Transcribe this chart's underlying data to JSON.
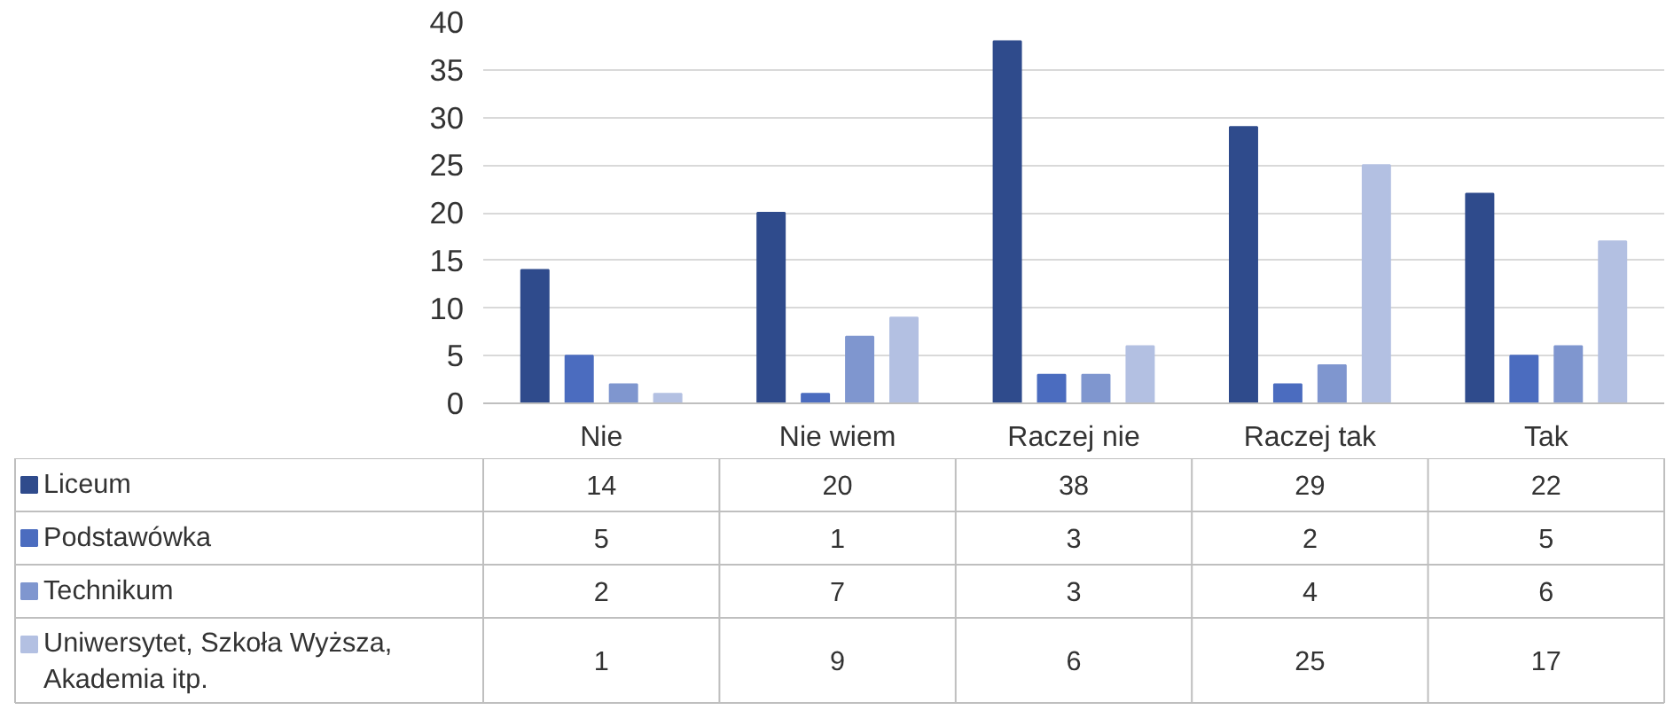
{
  "chart_data": {
    "type": "bar",
    "categories": [
      "Nie",
      "Nie wiem",
      "Raczej nie",
      "Raczej tak",
      "Tak"
    ],
    "series": [
      {
        "name": "Liceum",
        "color": "#2f4b8c",
        "values": [
          14,
          20,
          38,
          29,
          22
        ]
      },
      {
        "name": "Podstawówka",
        "color": "#4b6cbf",
        "values": [
          5,
          1,
          3,
          2,
          5
        ]
      },
      {
        "name": "Technikum",
        "color": "#7f96cf",
        "values": [
          2,
          7,
          3,
          4,
          6
        ]
      },
      {
        "name": "Uniwersytet, Szkoła Wyższa, Akademia itp.",
        "color": "#b3c0e2",
        "values": [
          1,
          9,
          6,
          25,
          17
        ]
      }
    ],
    "ylim": [
      0,
      40
    ],
    "yticks": [
      0,
      5,
      10,
      15,
      20,
      25,
      30,
      35,
      40
    ],
    "grid": "y",
    "legend": "bottom",
    "data_labels": true
  }
}
